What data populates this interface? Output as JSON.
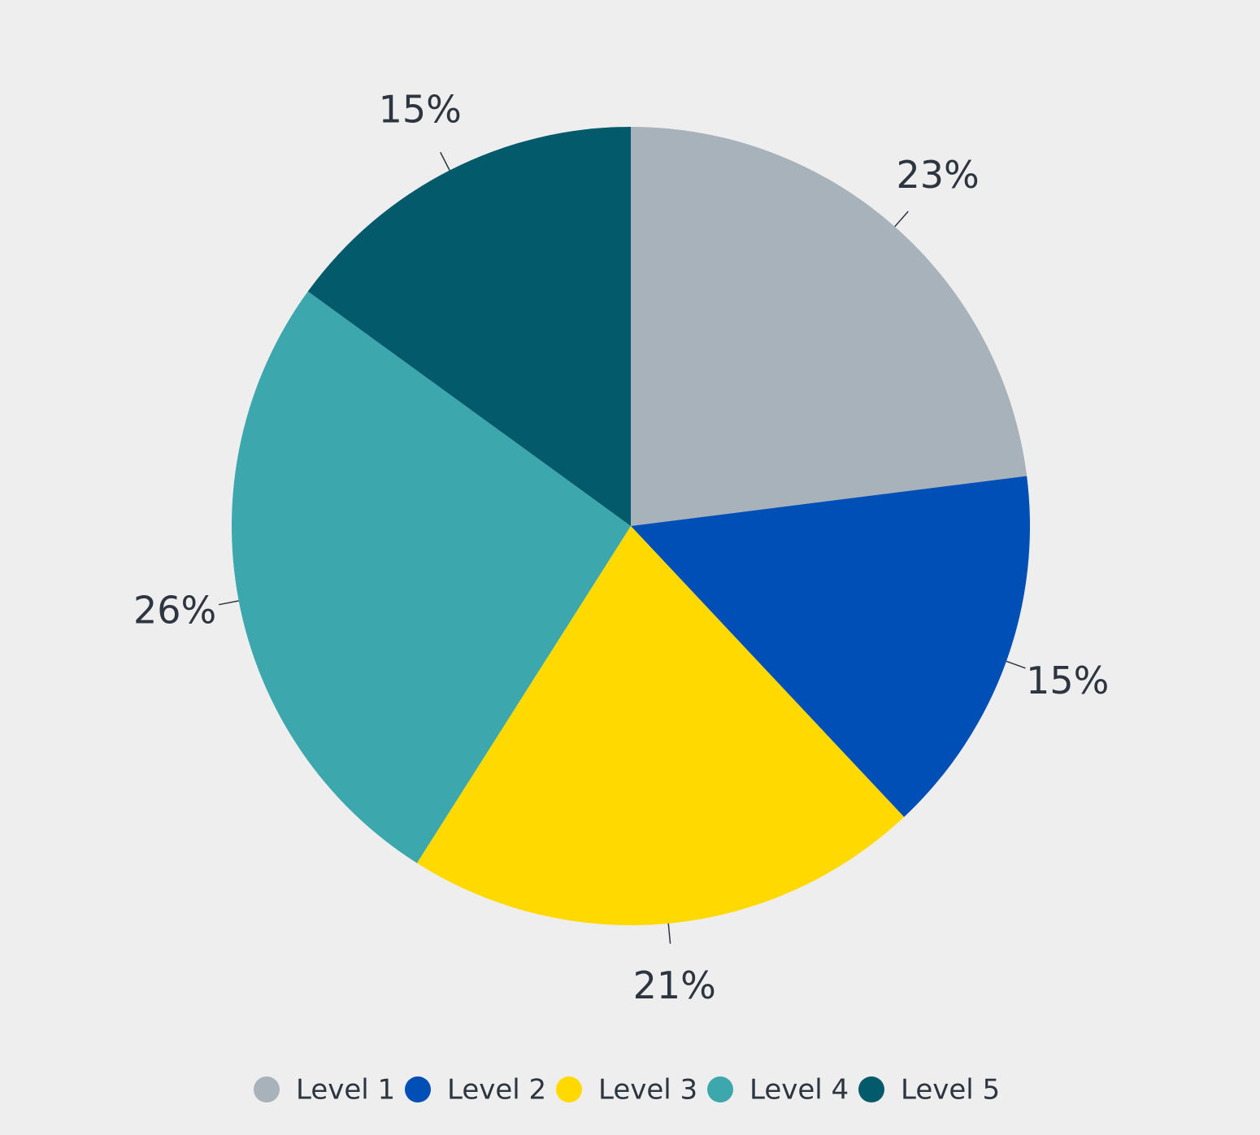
{
  "chart_data": {
    "type": "pie",
    "categories": [
      "Level 1",
      "Level 2",
      "Level 3",
      "Level 4",
      "Level 5"
    ],
    "values": [
      23,
      15,
      21,
      26,
      15
    ],
    "value_labels": [
      "23%",
      "15%",
      "21%",
      "26%",
      "15%"
    ],
    "colors": [
      "#a7b2bb",
      "#004fb6",
      "#ffd900",
      "#3ca8ae",
      "#035a6b"
    ],
    "legend": "bottom"
  }
}
